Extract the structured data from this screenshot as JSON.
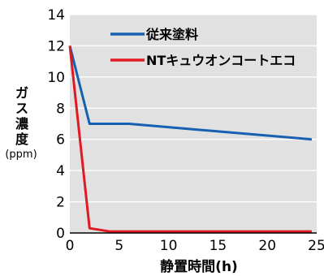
{
  "chart_data": {
    "type": "line",
    "xlabel": "静置時間(h)",
    "ylabel_chars": [
      "ガ",
      "ス",
      "濃",
      "度"
    ],
    "ylabel_unit": "(ppm)",
    "xlim": [
      0,
      25
    ],
    "ylim": [
      0,
      14
    ],
    "xticks": [
      0,
      5,
      10,
      15,
      20,
      25
    ],
    "yticks": [
      0,
      2,
      4,
      6,
      8,
      10,
      12,
      14
    ],
    "grid": "horizontal",
    "legend_position": "top-right",
    "plot_background": "#e1e1e1",
    "series": [
      {
        "name": "従来塗料",
        "color": "#1560b0",
        "x": [
          0,
          2,
          6,
          24.5
        ],
        "y": [
          12,
          7,
          7,
          6
        ]
      },
      {
        "name": "NTキュウオンコートエコ",
        "color": "#e01a22",
        "x": [
          0,
          2,
          4,
          24.5
        ],
        "y": [
          12,
          0.3,
          0.1,
          0.1
        ]
      }
    ]
  }
}
